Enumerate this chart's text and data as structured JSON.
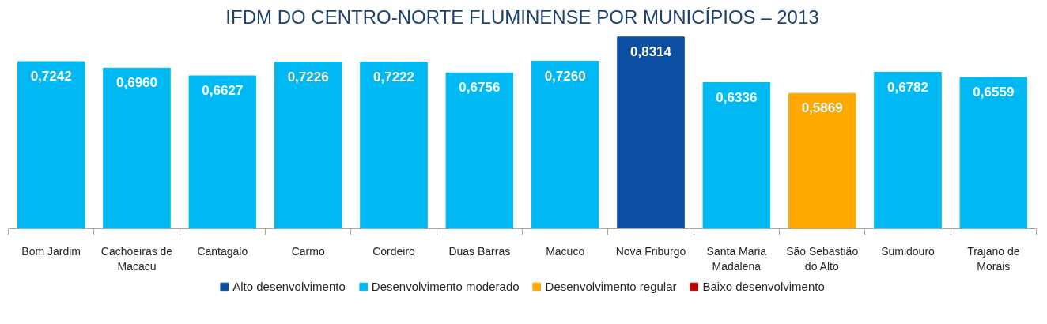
{
  "chart_data": {
    "type": "bar",
    "title": "IFDM DO CENTRO-NORTE FLUMINENSE POR MUNICÍPIOS – 2013",
    "categories": [
      "Bom Jardim",
      "Cachoeiras de Macacu",
      "Cantagalo",
      "Carmo",
      "Cordeiro",
      "Duas Barras",
      "Macuco",
      "Nova Friburgo",
      "Santa Maria Madalena",
      "São Sebastião do Alto",
      "Sumidouro",
      "Trajano de Morais"
    ],
    "series": [
      {
        "name": "Alto desenvolvimento",
        "color": "#0b4ea2",
        "values": [
          null,
          null,
          null,
          null,
          null,
          null,
          null,
          0.8314,
          null,
          null,
          null,
          null
        ],
        "value_labels": [
          null,
          null,
          null,
          null,
          null,
          null,
          null,
          "0,8314",
          null,
          null,
          null,
          null
        ]
      },
      {
        "name": "Desenvolvimento moderado",
        "color": "#00b9f2",
        "values": [
          0.7242,
          0.696,
          0.6627,
          0.7226,
          0.7222,
          0.6756,
          0.726,
          null,
          0.6336,
          null,
          0.6782,
          0.6559
        ],
        "value_labels": [
          "0,7242",
          "0,6960",
          "0,6627",
          "0,7226",
          "0,7222",
          "0,6756",
          "0,7260",
          null,
          "0,6336",
          null,
          "0,6782",
          "0,6559"
        ]
      },
      {
        "name": "Desenvolvimento regular",
        "color": "#ffa800",
        "values": [
          null,
          null,
          null,
          null,
          null,
          null,
          null,
          null,
          null,
          0.5869,
          null,
          null
        ],
        "value_labels": [
          null,
          null,
          null,
          null,
          null,
          null,
          null,
          null,
          null,
          "0,5869",
          null,
          null
        ]
      },
      {
        "name": "Baixo desenvolvimento",
        "color": "#c00000",
        "values": [
          null,
          null,
          null,
          null,
          null,
          null,
          null,
          null,
          null,
          null,
          null,
          null
        ]
      }
    ],
    "legend": "bottom"
  }
}
